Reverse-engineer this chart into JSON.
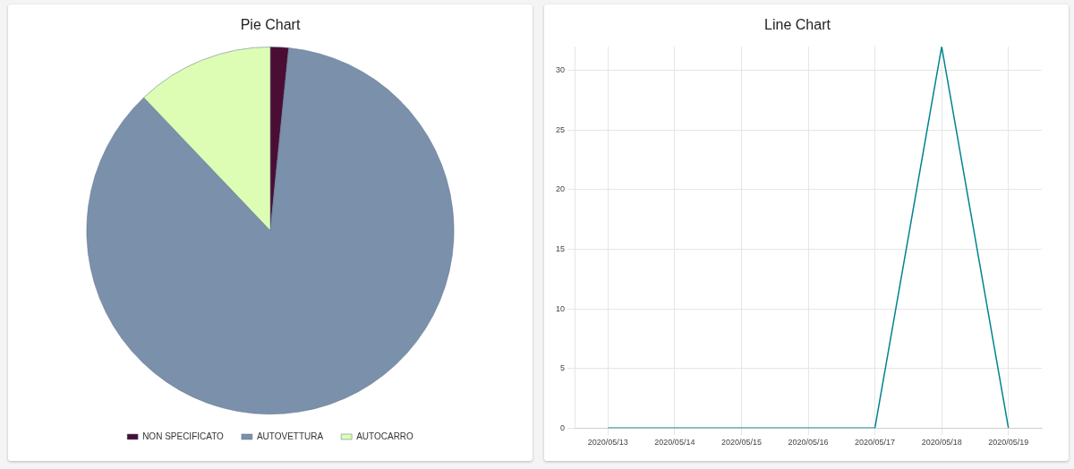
{
  "chart_data": [
    {
      "type": "pie",
      "title": "Pie Chart",
      "categories": [
        "NON SPECIFICATO",
        "AUTOVETTURA",
        "AUTOCARRO"
      ],
      "values": [
        1.6,
        86.3,
        12.1
      ],
      "colors": [
        "#4a0e35",
        "#7b90aa",
        "#ddfdb4"
      ],
      "legend": "bottom"
    },
    {
      "type": "line",
      "title": "Line Chart",
      "categories": [
        "2020/05/13",
        "2020/05/14",
        "2020/05/15",
        "2020/05/16",
        "2020/05/17",
        "2020/05/18",
        "2020/05/19"
      ],
      "series": [
        {
          "color": "#00838f",
          "values": [
            0,
            0,
            0,
            0,
            0,
            32,
            0
          ]
        }
      ],
      "ylim": [
        0,
        32
      ],
      "yticks": [
        0,
        5,
        10,
        15,
        20,
        25,
        30
      ],
      "grid": true,
      "marker": "none",
      "line_style": "solid"
    }
  ]
}
